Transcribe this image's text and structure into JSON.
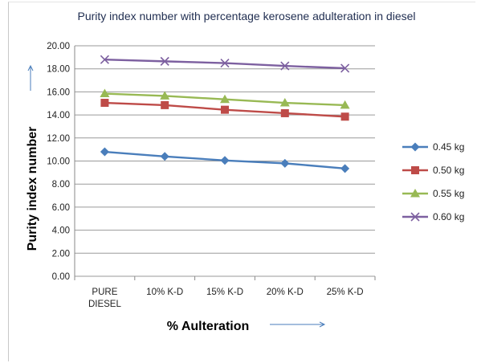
{
  "chart_data": {
    "type": "line",
    "title": "Purity index number  with percentage kerosene adulteration in diesel",
    "xlabel": "% Aulteration",
    "ylabel": "Purity index number",
    "categories": [
      [
        "PURE",
        "DIESEL"
      ],
      [
        "10% K-D"
      ],
      [
        "15% K-D"
      ],
      [
        "20% K-D"
      ],
      [
        "25% K-D"
      ]
    ],
    "ylim": [
      0,
      20
    ],
    "yticks": [
      "0.00",
      "2.00",
      "4.00",
      "6.00",
      "8.00",
      "10.00",
      "12.00",
      "14.00",
      "16.00",
      "18.00",
      "20.00"
    ],
    "grid": true,
    "legend_position": "right",
    "series": [
      {
        "name": "0.45 kg",
        "values": [
          10.8,
          10.4,
          10.05,
          9.8,
          9.35
        ],
        "color": "#4a7ebb",
        "marker": "diamond"
      },
      {
        "name": "0.50 kg",
        "values": [
          15.05,
          14.85,
          14.45,
          14.15,
          13.85
        ],
        "color": "#be4b48",
        "marker": "square"
      },
      {
        "name": "0.55 kg",
        "values": [
          15.85,
          15.65,
          15.35,
          15.05,
          14.85
        ],
        "color": "#98b954",
        "marker": "triangle"
      },
      {
        "name": "0.60 kg",
        "values": [
          18.8,
          18.65,
          18.5,
          18.25,
          18.05
        ],
        "color": "#7d60a0",
        "marker": "x"
      }
    ]
  }
}
